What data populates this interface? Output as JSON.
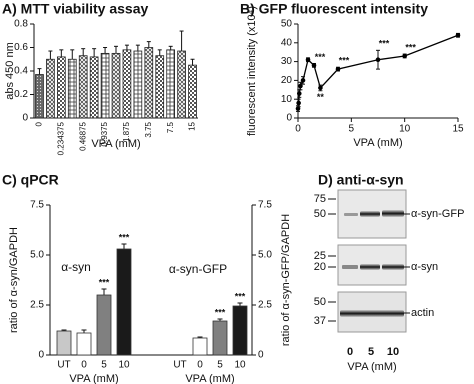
{
  "chart_data": [
    {
      "type": "bar",
      "title": "A) MTT viability assay",
      "ylabel": "abs 450 nm",
      "xlabel": "VPA (mM)",
      "categories": [
        "0",
        null,
        "0.234375",
        null,
        "0.46875",
        null,
        "0.9375",
        null,
        "1.875",
        null,
        "3.75",
        null,
        "7.5",
        null,
        "15"
      ],
      "values": [
        0.37,
        0.5,
        0.52,
        0.5,
        0.53,
        0.52,
        0.55,
        0.55,
        0.58,
        0.57,
        0.6,
        0.53,
        0.58,
        0.57,
        0.45
      ],
      "errors": [
        0.05,
        0.07,
        0.06,
        0.08,
        0.06,
        0.07,
        0.05,
        0.06,
        0.04,
        0.05,
        0.05,
        0.05,
        0.03,
        0.17,
        0.05
      ],
      "color": "#222222",
      "ylim": [
        0,
        0.8
      ],
      "yticks": [
        0,
        0.2,
        0.4,
        0.6,
        0.8
      ]
    },
    {
      "type": "line",
      "title": "B) GFP fluorescent intensity",
      "ylabel": "fluorescent intensity (x10⁴)",
      "xlabel": "VPA (mM)",
      "x": [
        0,
        0.06,
        0.12,
        0.23,
        0.47,
        0.94,
        1.5,
        2.1,
        3.75,
        7.5,
        10,
        15
      ],
      "values": [
        5,
        8,
        13,
        17,
        20,
        31,
        28,
        16,
        26,
        31,
        33,
        44
      ],
      "errors": [
        1.5,
        2,
        2,
        2,
        2,
        1,
        1,
        1.5,
        1,
        5,
        1,
        1
      ],
      "point_labels": [
        null,
        null,
        null,
        null,
        null,
        null,
        "***",
        "**",
        "***",
        "***",
        "***",
        null
      ],
      "color": "#000000",
      "xlim": [
        0,
        15
      ],
      "xticks": [
        0,
        5,
        10,
        15
      ],
      "ylim": [
        0,
        50
      ],
      "yticks": [
        0,
        10,
        20,
        30,
        40,
        50
      ]
    },
    {
      "type": "grouped_bar",
      "title": "C) qPCR",
      "ylabel": "ratio of α-syn/GAPDH",
      "y2label": "ratio of α-syn-GFP/GAPDH",
      "xlabel": "VPA (mM)",
      "categories": [
        "UT",
        "0",
        "5",
        "10",
        "UT",
        "0",
        "5",
        "10"
      ],
      "colors": [
        "#c8c8c8",
        "#ffffff",
        "#808080",
        "#1a1a1a",
        "#c8c8c8",
        "#ffffff",
        "#808080",
        "#1a1a1a"
      ],
      "series": [
        {
          "name": "α-syn",
          "values": [
            1.2,
            1.1,
            3.0,
            5.3,
            null,
            null,
            null,
            null
          ],
          "errors": [
            0.05,
            0.15,
            0.3,
            0.25,
            null,
            null,
            null,
            null
          ],
          "annotations": [
            null,
            null,
            "***",
            "***",
            null,
            null,
            null,
            null
          ]
        },
        {
          "name": "α-syn-GFP",
          "axis": "y2",
          "values": [
            null,
            null,
            null,
            null,
            null,
            0.85,
            1.7,
            2.45
          ],
          "errors": [
            null,
            null,
            null,
            null,
            null,
            0.05,
            0.1,
            0.15
          ],
          "annotations": [
            null,
            null,
            null,
            null,
            null,
            null,
            "***",
            "***"
          ]
        }
      ],
      "ylim": [
        0,
        7.5
      ],
      "yticks": [
        0,
        2.5,
        {
          "value": 5,
          "label": "5.0"
        },
        7.5
      ],
      "y2lim": [
        0,
        7.5
      ],
      "y2ticks": [
        0,
        2.5,
        {
          "value": 5,
          "label": "5.0"
        },
        7.5
      ]
    }
  ],
  "blot": {
    "title": "D) anti-α-syn",
    "strips": [
      {
        "markers": [
          75,
          50
        ],
        "band": "α-syn-GFP"
      },
      {
        "markers": [
          25,
          20
        ],
        "band": "α-syn"
      },
      {
        "markers": [
          50,
          37
        ],
        "band": "actin"
      }
    ],
    "lanes": [
      "0",
      "5",
      "10"
    ],
    "xlabel": "VPA (mM)"
  }
}
